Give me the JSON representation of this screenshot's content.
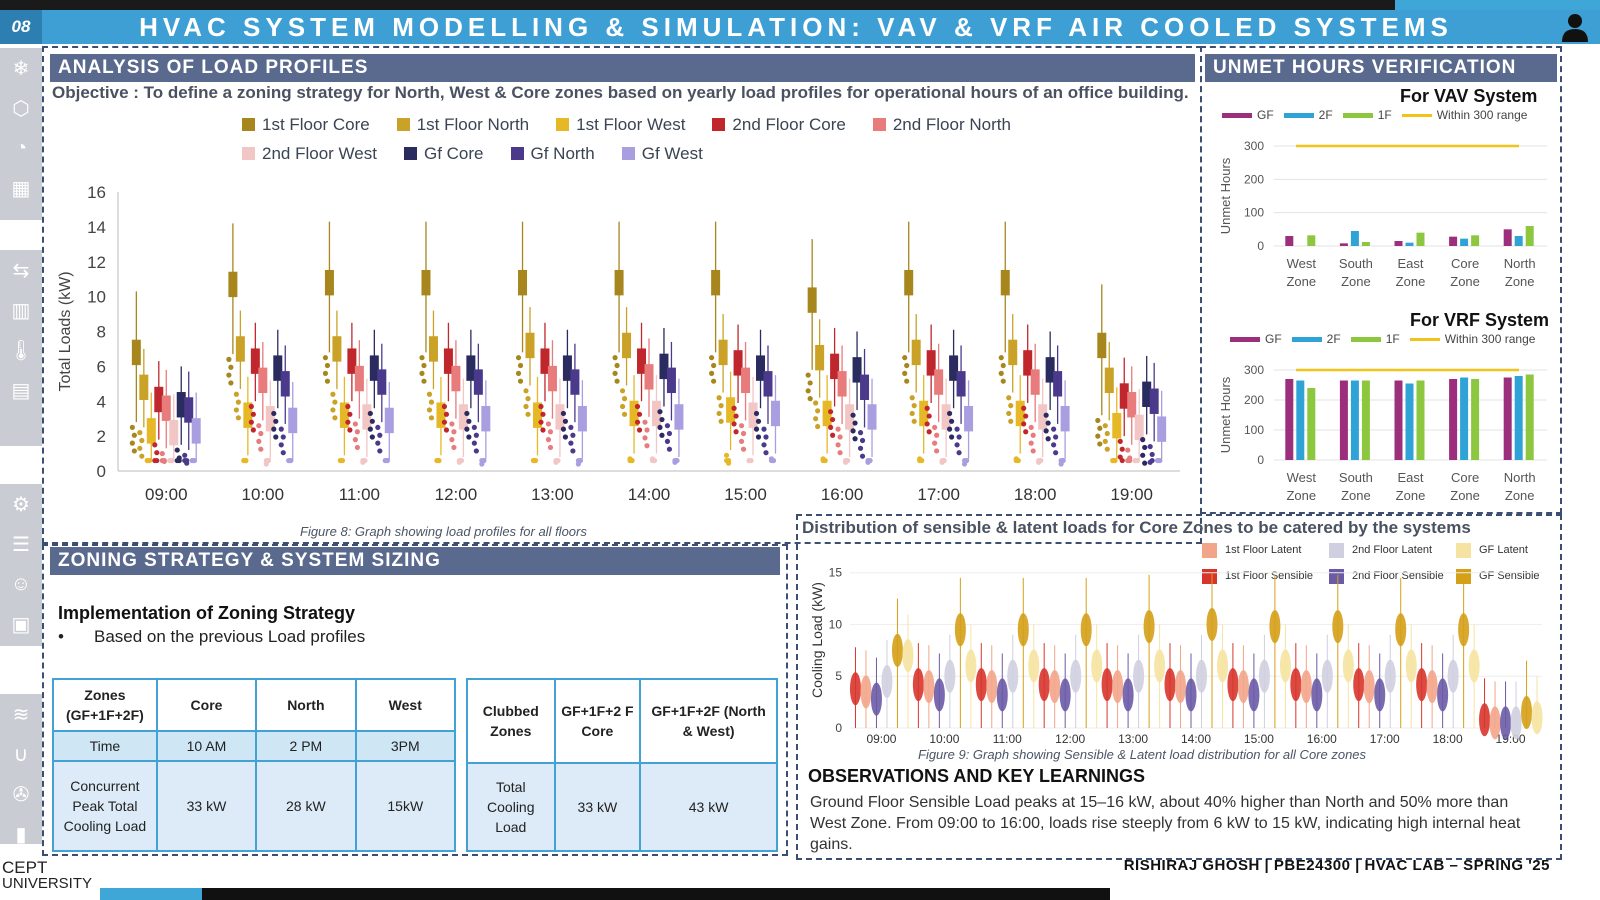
{
  "header": {
    "page_number": "08",
    "title": "HVAC SYSTEM MODELLING & SIMULATION: VAV & VRF AIR COOLED SYSTEMS"
  },
  "load_profiles": {
    "section_title": "ANALYSIS OF LOAD PROFILES",
    "objective": "Objective : To define a zoning strategy for North, West & Core zones based on yearly load profiles for operational hours of an office building.",
    "caption": "Figure 8: Graph showing load profiles for all floors"
  },
  "zoning": {
    "section_title": "ZONING STRATEGY & SYSTEM SIZING",
    "subheading": "Implementation of Zoning Strategy",
    "bullet": "Based on the previous Load profiles",
    "table1": {
      "headers": [
        "Zones (GF+1F+2F)",
        "Core",
        "North",
        "West"
      ],
      "time_row": [
        "Time",
        "10 AM",
        "2 PM",
        "3PM"
      ],
      "load_row": [
        "Concurrent Peak Total Cooling Load",
        "33 kW",
        "28 kW",
        "15kW"
      ]
    },
    "table2": {
      "headers": [
        "Clubbed Zones",
        "GF+1F+2 F Core",
        "GF+1F+2F (North & West)"
      ],
      "load_row": [
        "Total Cooling Load",
        "33 kW",
        "43 kW"
      ]
    }
  },
  "unmet": {
    "section_title": "UNMET HOURS VERIFICATION",
    "legend": [
      "GF",
      "2F",
      "1F",
      "Within 300 range"
    ]
  },
  "distribution": {
    "title": "Distribution of sensible & latent loads for Core Zones to be catered by the systems",
    "caption": "Figure 9: Graph showing Sensible & Latent load distribution for all Core zones"
  },
  "observations": {
    "title": "OBSERVATIONS AND KEY LEARNINGS",
    "text": "Ground Floor Sensible Load peaks at 15–16 kW, about 40% higher than North and 50% more than West Zone. From 09:00 to 16:00, loads rise steeply from 6 kW to 15 kW, indicating high internal heat gains."
  },
  "footer": {
    "text": "RISHIRAJ GHOSH | PBE24300 | HVAC LAB – SPRING '25",
    "logo_line1": "CEPT",
    "logo_line2": "UNIVERSITY"
  },
  "colors": {
    "title_bar": "#3d9fd3",
    "section_header": "#5a6a8e",
    "table_border": "#43a2d5",
    "gf": "#9b2f7c",
    "f2": "#2fa3d6",
    "f1": "#8dc63f",
    "limit": "#f0c419"
  },
  "sidebar_icons": [
    "snowflake-icon",
    "cube-icon",
    "gauge-icon",
    "building-icon",
    "arrows-icon",
    "building-icon",
    "thermometer-icon",
    "building-icon",
    "network-icon",
    "sliders-icon",
    "people-icon",
    "chart-icon",
    "vent-icon",
    "magnet-icon",
    "fan-icon",
    "battery-icon"
  ],
  "chart_data": [
    {
      "type": "box",
      "ylabel": "Total Loads (kW)",
      "ylim": [
        0,
        16
      ],
      "yticks": [
        0,
        2,
        4,
        6,
        8,
        10,
        12,
        14,
        16
      ],
      "categories": [
        "09:00",
        "10:00",
        "11:00",
        "12:00",
        "13:00",
        "14:00",
        "15:00",
        "16:00",
        "17:00",
        "18:00",
        "19:00"
      ],
      "series": [
        {
          "name": "1st Floor Core",
          "color": "#a8861e",
          "medians": [
            6.8,
            10.7,
            10.8,
            10.8,
            10.8,
            10.8,
            10.8,
            9.8,
            10.8,
            10.8,
            7.2
          ]
        },
        {
          "name": "1st Floor North",
          "color": "#c9a227",
          "medians": [
            4.8,
            7.0,
            7.0,
            7.0,
            7.2,
            7.2,
            6.8,
            6.5,
            6.8,
            6.8,
            5.2
          ]
        },
        {
          "name": "1st Floor West",
          "color": "#e6b826",
          "medians": [
            2.3,
            3.2,
            3.2,
            3.2,
            3.2,
            3.3,
            3.5,
            3.3,
            3.3,
            3.3,
            2.6
          ]
        },
        {
          "name": "2nd Floor Core",
          "color": "#c0272d",
          "medians": [
            4.1,
            6.3,
            6.3,
            6.3,
            6.3,
            6.3,
            6.2,
            6.0,
            6.2,
            6.2,
            4.3
          ]
        },
        {
          "name": "2nd Floor North",
          "color": "#e87b7b",
          "medians": [
            3.6,
            5.2,
            5.3,
            5.3,
            5.3,
            5.4,
            5.2,
            5.0,
            5.1,
            5.1,
            3.8
          ]
        },
        {
          "name": "2nd Floor West",
          "color": "#f3c6c6",
          "medians": [
            2.2,
            3.0,
            3.1,
            3.1,
            3.1,
            3.3,
            3.2,
            3.1,
            3.1,
            3.1,
            2.5
          ]
        },
        {
          "name": "Gf Core",
          "color": "#2a2b5e",
          "medians": [
            3.8,
            5.9,
            5.9,
            5.9,
            5.9,
            6.0,
            5.9,
            5.8,
            5.9,
            5.8,
            4.4
          ]
        },
        {
          "name": "Gf North",
          "color": "#4b3a8c",
          "medians": [
            3.5,
            5.0,
            5.1,
            5.1,
            5.1,
            5.2,
            5.0,
            4.8,
            5.0,
            5.0,
            4.0
          ]
        },
        {
          "name": "Gf West",
          "color": "#a89ee0",
          "medians": [
            2.3,
            2.9,
            2.9,
            3.0,
            3.0,
            3.1,
            3.3,
            3.1,
            3.0,
            3.0,
            2.4
          ]
        }
      ]
    },
    {
      "type": "bar",
      "title": "For VAV System",
      "ylabel": "Unmet Hours",
      "ylim": [
        0,
        300
      ],
      "yticks": [
        0,
        100,
        200,
        300
      ],
      "categories": [
        "West Zone",
        "South Zone",
        "East Zone",
        "Core Zone",
        "North Zone"
      ],
      "threshold": {
        "name": "Within 300 range",
        "value": 300
      },
      "series": [
        {
          "name": "GF",
          "values": [
            30,
            8,
            15,
            28,
            50
          ]
        },
        {
          "name": "2F",
          "values": [
            0,
            45,
            10,
            22,
            30
          ]
        },
        {
          "name": "1F",
          "values": [
            32,
            12,
            40,
            32,
            60
          ]
        }
      ]
    },
    {
      "type": "bar",
      "title": "For VRF System",
      "ylabel": "Unmet Hours",
      "ylim": [
        0,
        300
      ],
      "yticks": [
        0,
        100,
        200,
        300
      ],
      "categories": [
        "West Zone",
        "South Zone",
        "East Zone",
        "Core Zone",
        "North Zone"
      ],
      "threshold": {
        "name": "Within 300 range",
        "value": 300
      },
      "series": [
        {
          "name": "GF",
          "values": [
            270,
            265,
            265,
            270,
            275
          ]
        },
        {
          "name": "2F",
          "values": [
            265,
            265,
            255,
            275,
            280
          ]
        },
        {
          "name": "1F",
          "values": [
            240,
            265,
            265,
            270,
            285
          ]
        }
      ]
    },
    {
      "type": "violin",
      "ylabel": "Cooling Load (kW)",
      "ylim": [
        0,
        17
      ],
      "yticks": [
        0,
        5,
        10,
        15
      ],
      "categories": [
        "09:00",
        "10:00",
        "11:00",
        "12:00",
        "13:00",
        "14:00",
        "15:00",
        "16:00",
        "17:00",
        "18:00",
        "19:00"
      ],
      "series": [
        {
          "name": "1st Floor Latent",
          "color": "#f3a58a",
          "medians": [
            3.5,
            4,
            4,
            4,
            4,
            4,
            4,
            4,
            4,
            4,
            0.5
          ]
        },
        {
          "name": "2nd Floor Latent",
          "color": "#cfcfe0",
          "medians": [
            4.5,
            5,
            5,
            5,
            5,
            5,
            5,
            5,
            5,
            5,
            0.5
          ]
        },
        {
          "name": "GF Latent",
          "color": "#f6e3a1",
          "medians": [
            7,
            6,
            6,
            6,
            6,
            6,
            6,
            6,
            6,
            6,
            1
          ]
        },
        {
          "name": "1st Floor Sensible",
          "color": "#d7352b",
          "medians": [
            3.8,
            4.2,
            4.2,
            4.2,
            4.2,
            4.2,
            4.2,
            4.2,
            4.2,
            4.2,
            0.8
          ]
        },
        {
          "name": "2nd Floor Sensible",
          "color": "#6b5aa6",
          "medians": [
            2.8,
            3.2,
            3.2,
            3.2,
            3.2,
            3.2,
            3.2,
            3.2,
            3.2,
            3.2,
            0.5
          ]
        },
        {
          "name": "GF Sensible",
          "color": "#d4a017",
          "medians": [
            7.5,
            9.5,
            9.5,
            9.5,
            9.8,
            10,
            9.8,
            9.8,
            9.5,
            9.5,
            1.5
          ]
        }
      ]
    }
  ]
}
